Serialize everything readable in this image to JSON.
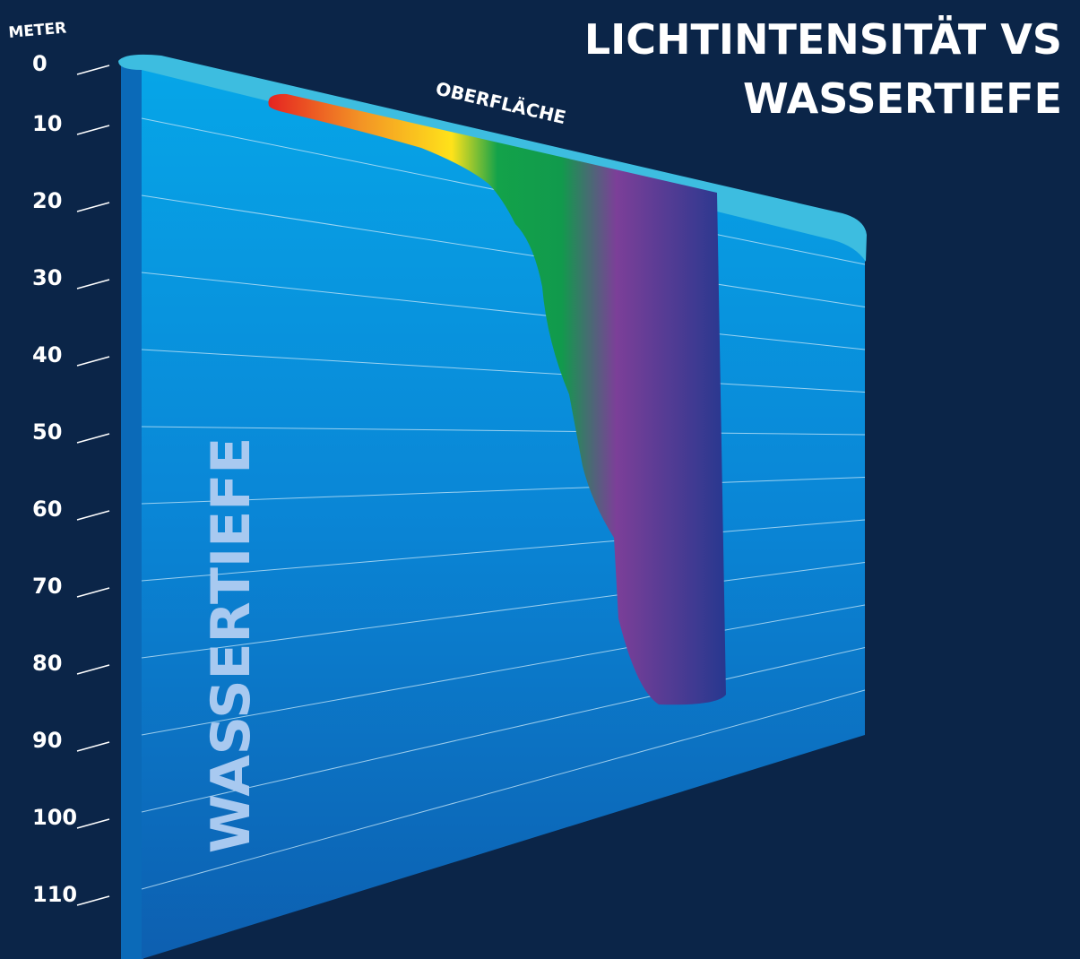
{
  "title_lines": [
    "LICHTINTENSITÄT VS",
    "WASSERTIEFE"
  ],
  "unit_label": "METER",
  "surface_label": "OBERFLÄCHE",
  "axis_label": "WASSERTIEFE",
  "depth_labels": [
    "0",
    "10",
    "20",
    "30",
    "40",
    "50",
    "60",
    "70",
    "80",
    "90",
    "100",
    "110"
  ]
}
